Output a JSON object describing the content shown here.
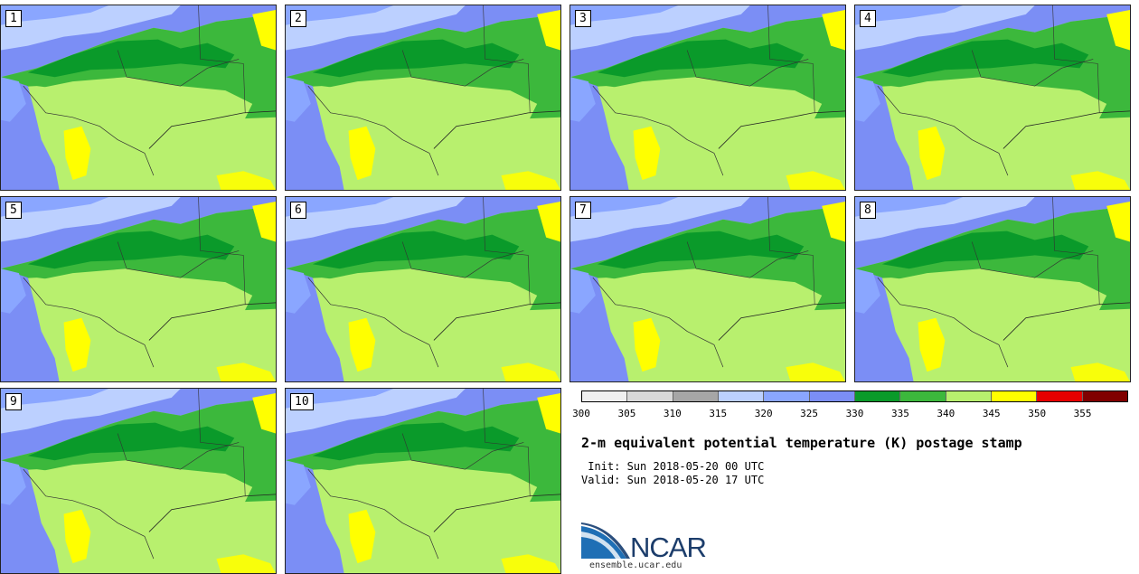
{
  "stamps": [
    {
      "label": "1"
    },
    {
      "label": "2"
    },
    {
      "label": "3"
    },
    {
      "label": "4"
    },
    {
      "label": "5"
    },
    {
      "label": "6"
    },
    {
      "label": "7"
    },
    {
      "label": "8"
    },
    {
      "label": "9"
    },
    {
      "label": "10"
    }
  ],
  "colorbar": {
    "colors": [
      "#f0f0f0",
      "#d9d9d9",
      "#a6a6a6",
      "#bcd0ff",
      "#8aa6ff",
      "#7b8ef5",
      "#0a9a2a",
      "#3cb83c",
      "#b8f06e",
      "#ffff00",
      "#e60000",
      "#800000"
    ],
    "tick_labels": [
      "300",
      "305",
      "310",
      "315",
      "320",
      "325",
      "330",
      "335",
      "340",
      "345",
      "350",
      "355"
    ]
  },
  "title": "2-m equivalent potential temperature (K) postage stamp",
  "init_text": " Init: Sun 2018-05-20 00 UTC",
  "valid_text": "Valid: Sun 2018-05-20 17 UTC",
  "logo_text": "NCAR",
  "site_url": "ensemble.ucar.edu"
}
